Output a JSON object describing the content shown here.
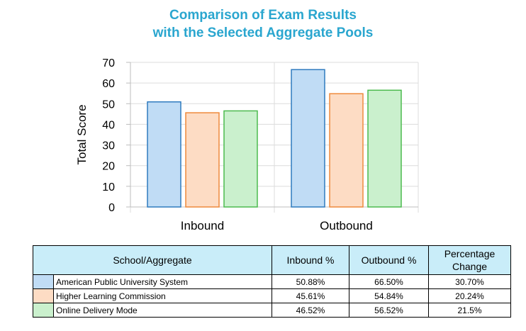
{
  "title_line1": "Comparison of Exam Results",
  "title_line2": "with the Selected Aggregate Pools",
  "chart_data": {
    "type": "bar",
    "categories": [
      "Inbound",
      "Outbound"
    ],
    "ylabel": "Total Score",
    "ylim": [
      0,
      70
    ],
    "yticks": [
      0,
      10,
      20,
      30,
      40,
      50,
      60,
      70
    ],
    "grid": true,
    "series": [
      {
        "name": "American Public University System",
        "values": [
          50.88,
          66.5
        ],
        "fill": "#c0dcf5",
        "stroke": "#2f7bbf"
      },
      {
        "name": "Higher Learning Commission",
        "values": [
          45.61,
          54.84
        ],
        "fill": "#fddcc4",
        "stroke": "#ef8a3c"
      },
      {
        "name": "Online Delivery Mode",
        "values": [
          46.52,
          56.52
        ],
        "fill": "#caf0cd",
        "stroke": "#4cbb4f"
      }
    ]
  },
  "table": {
    "headers": [
      "School/Aggregate",
      "Inbound %",
      "Outbound %",
      "Percentage Change"
    ],
    "rows": [
      {
        "label": "American Public University System",
        "inbound": "50.88%",
        "outbound": "66.50%",
        "change": "30.70%",
        "color": "#c0dcf5"
      },
      {
        "label": "Higher Learning Commission",
        "inbound": "45.61%",
        "outbound": "54.84%",
        "change": "20.24%",
        "color": "#fddcc4"
      },
      {
        "label": "Online Delivery Mode",
        "inbound": "46.52%",
        "outbound": "56.52%",
        "change": "21.5%",
        "color": "#caf0cd"
      }
    ]
  }
}
